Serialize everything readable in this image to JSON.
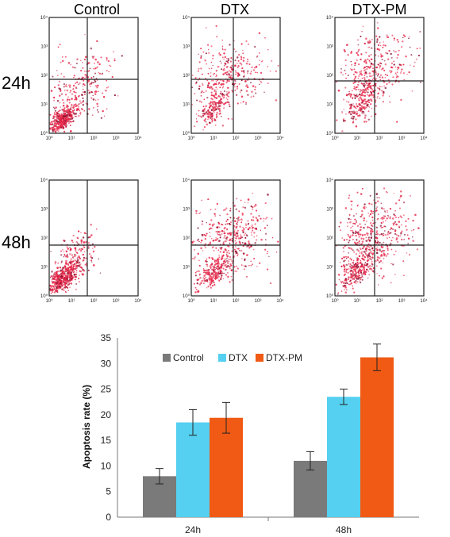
{
  "flow_panels": {
    "columns": [
      "Control",
      "DTX",
      "DTX-PM"
    ],
    "rows": [
      "24h",
      "48h"
    ],
    "axis_ticks_y": [
      "10⁰",
      "10¹",
      "10²",
      "10³",
      "10⁴"
    ],
    "axis_ticks_x": [
      "10⁰",
      "10¹",
      "10²",
      "10³",
      "10⁴"
    ],
    "dot_color": "#e8284a"
  },
  "chart_data": {
    "type": "bar",
    "categories": [
      "24h",
      "48h"
    ],
    "series": [
      {
        "name": "Control",
        "values": [
          8.0,
          11.0
        ],
        "errors": [
          1.5,
          1.8
        ],
        "color": "#7a7a7a"
      },
      {
        "name": "DTX",
        "values": [
          18.5,
          23.5
        ],
        "errors": [
          2.5,
          1.5
        ],
        "color": "#55d0f0"
      },
      {
        "name": "DTX-PM",
        "values": [
          19.4,
          31.2
        ],
        "errors": [
          3.0,
          2.6
        ],
        "color": "#f05a14"
      }
    ],
    "ylabel": "Apoptosis rate (%)",
    "ylim": [
      0,
      35
    ],
    "yticks": [
      0,
      5,
      10,
      15,
      20,
      25,
      30,
      35
    ],
    "legend_position": "top"
  }
}
